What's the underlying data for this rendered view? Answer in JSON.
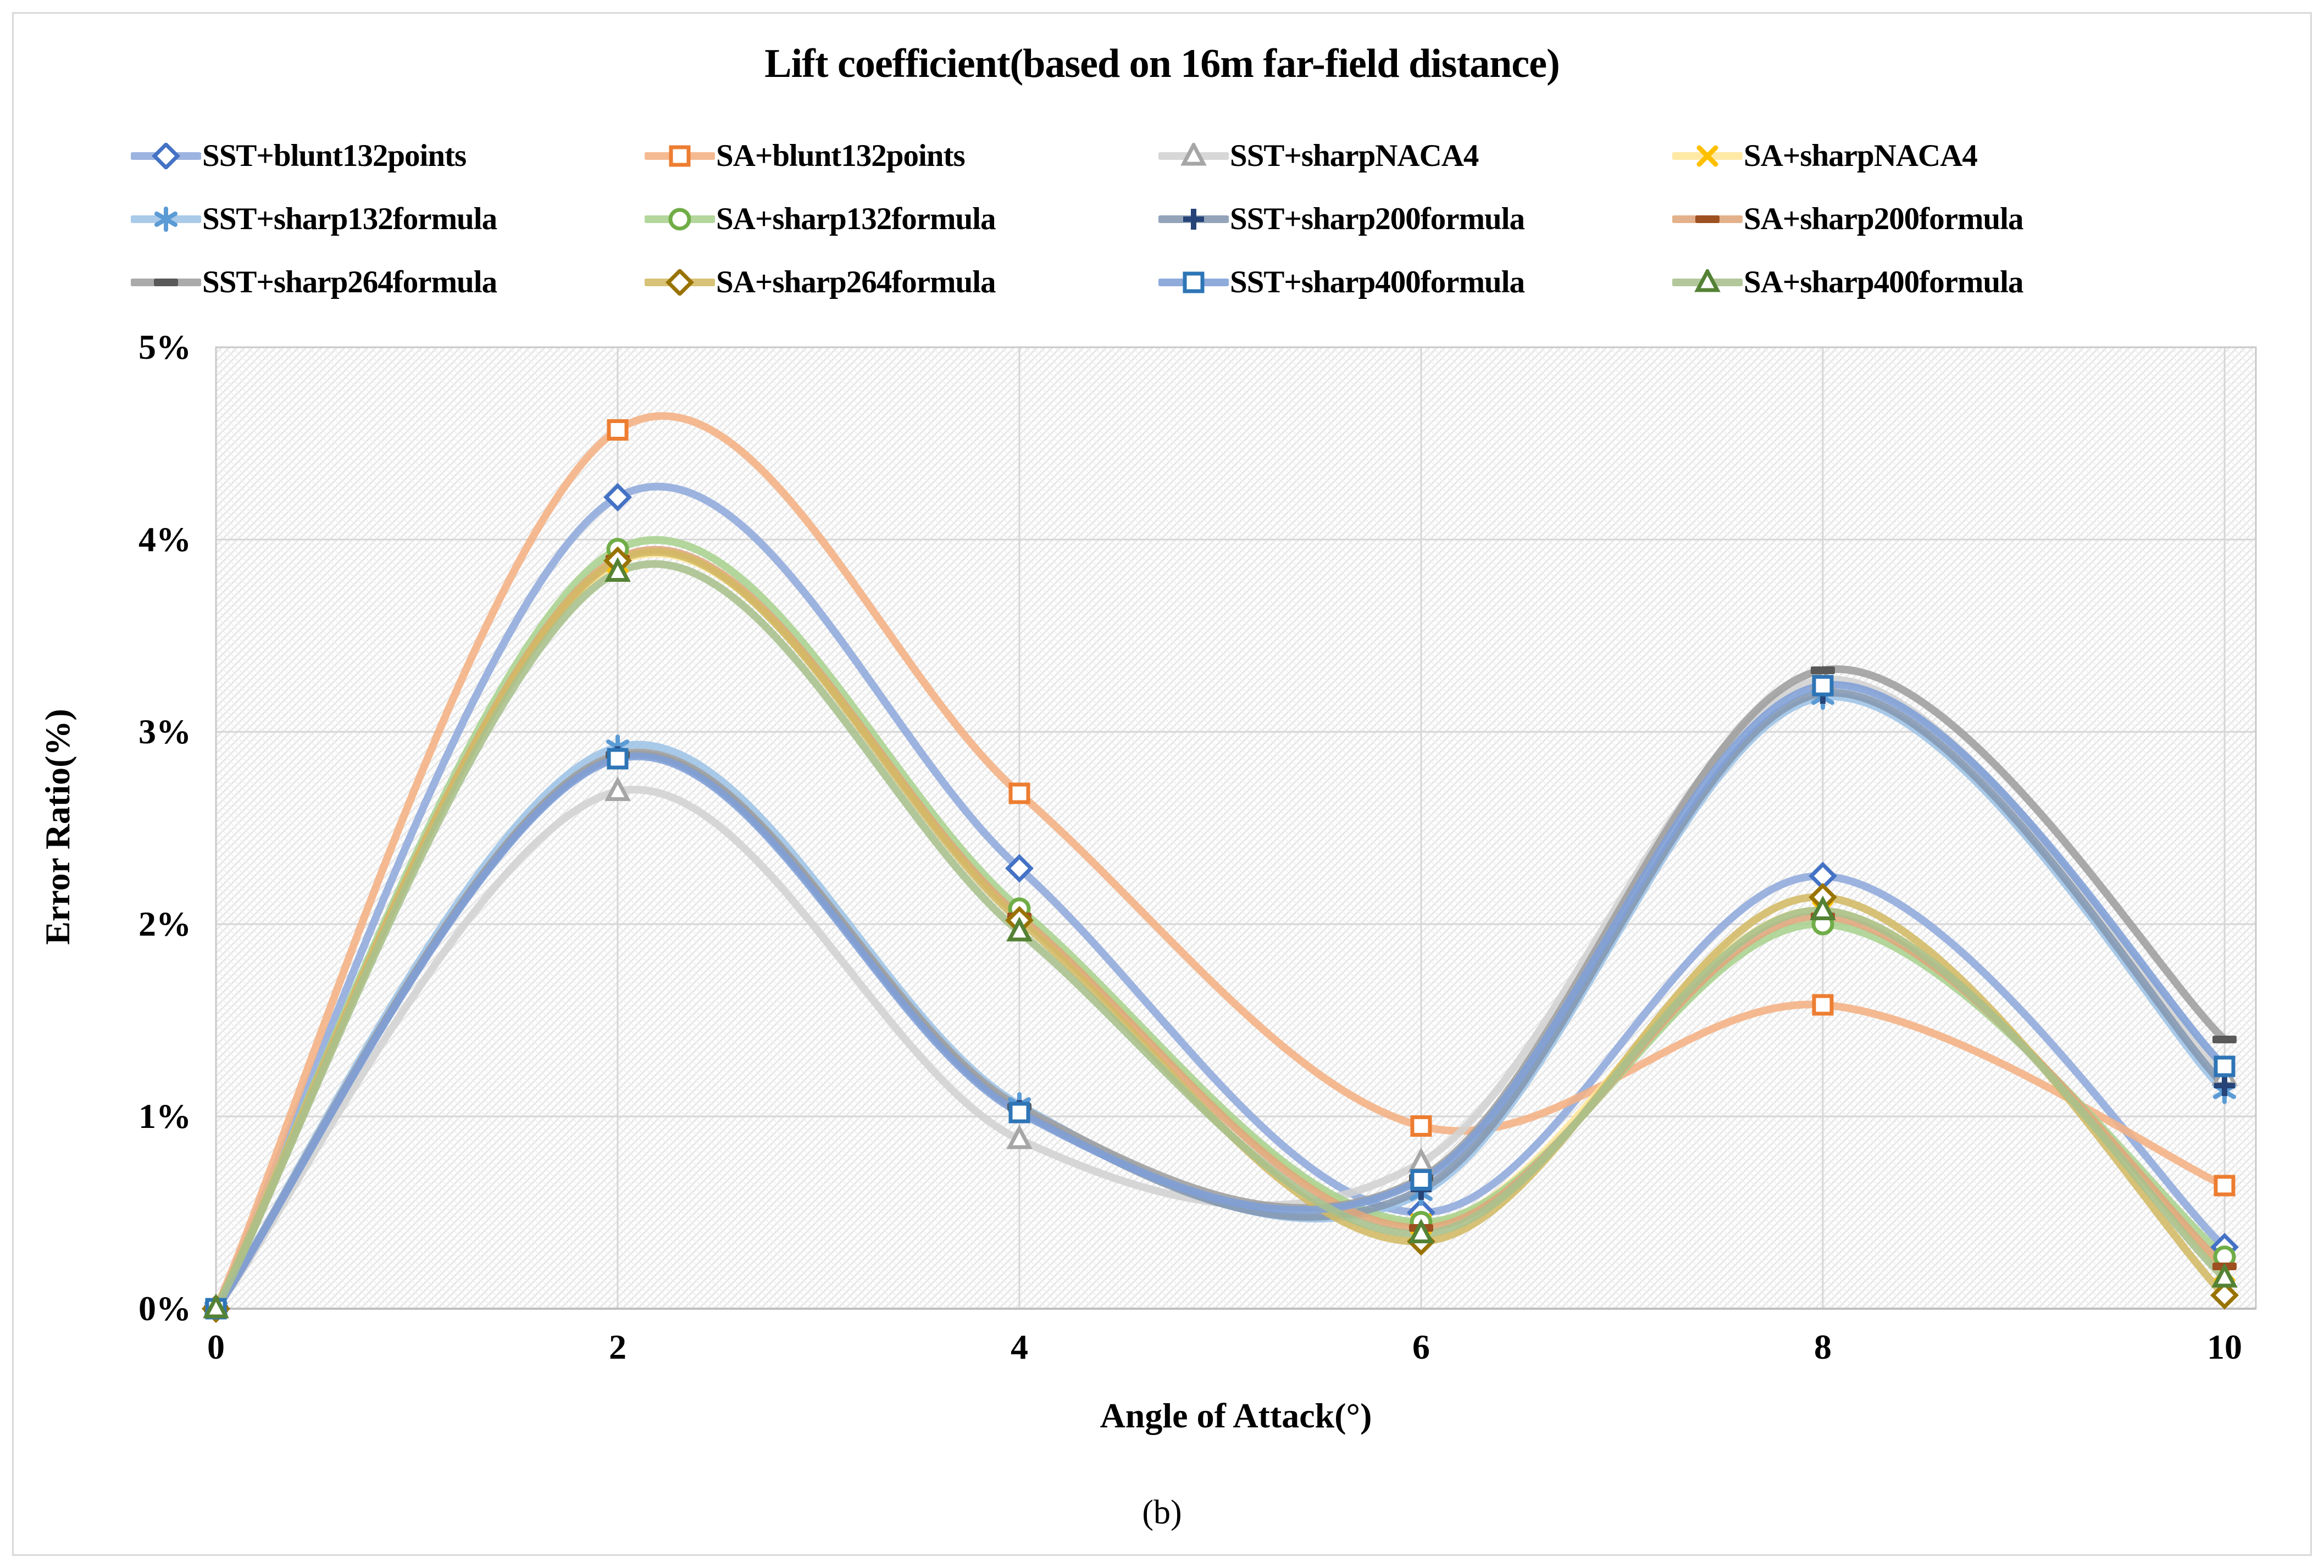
{
  "figure": {
    "caption": "(b)"
  },
  "chart_data": {
    "type": "line",
    "title": "Lift coefficient(based on 16m far-field distance)",
    "x_label": "Angle of Attack(°)",
    "y_label": "Error Ratio(%)",
    "x": [
      0,
      2,
      4,
      6,
      8,
      10
    ],
    "x_ticks": [
      "0",
      "2",
      "4",
      "6",
      "8",
      "10"
    ],
    "y_ticks": [
      "0%",
      "1%",
      "2%",
      "3%",
      "4%",
      "5%"
    ],
    "xlim": [
      0,
      10.16
    ],
    "ylim_percent": [
      0,
      5
    ],
    "grid": true,
    "legend_position": "top",
    "line_smoothing": true,
    "plot_background": "diagonal-hatch",
    "series": [
      {
        "name": "SST+blunt132points",
        "marker": "diamond",
        "line_color": "#8FAADC",
        "marker_color": "#4472C4",
        "values": [
          0,
          4.22,
          2.29,
          0.5,
          2.25,
          0.32
        ]
      },
      {
        "name": "SA+blunt132points",
        "marker": "square",
        "line_color": "#F4B183",
        "marker_color": "#ED7D31",
        "values": [
          0,
          4.57,
          2.68,
          0.95,
          1.58,
          0.64
        ]
      },
      {
        "name": "SST+sharpNACA4",
        "marker": "triangle",
        "line_color": "#D2D2D2",
        "marker_color": "#A6A6A6",
        "values": [
          0,
          2.69,
          0.88,
          0.76,
          3.27,
          1.21
        ]
      },
      {
        "name": "SA+sharpNACA4",
        "marker": "x",
        "line_color": "#FFE699",
        "marker_color": "#FFC000",
        "values": [
          0,
          3.88,
          2.05,
          0.44,
          2.07,
          0.19
        ]
      },
      {
        "name": "SST+sharp132formula",
        "marker": "asterisk",
        "line_color": "#9DC3E6",
        "marker_color": "#5B9BD5",
        "values": [
          0,
          2.92,
          1.06,
          0.6,
          3.18,
          1.13
        ]
      },
      {
        "name": "SA+sharp132formula",
        "marker": "circle",
        "line_color": "#A9D18E",
        "marker_color": "#70AD47",
        "values": [
          0,
          3.95,
          2.08,
          0.45,
          2.0,
          0.27
        ]
      },
      {
        "name": "SST+sharp200formula",
        "marker": "plus",
        "line_color": "#8497B0",
        "marker_color": "#264478",
        "values": [
          0,
          2.87,
          1.03,
          0.62,
          3.2,
          1.16
        ]
      },
      {
        "name": "SA+sharp200formula",
        "marker": "dash",
        "line_color": "#DFA67B",
        "marker_color": "#9E5021",
        "values": [
          0,
          3.9,
          2.04,
          0.42,
          2.04,
          0.22
        ]
      },
      {
        "name": "SST+sharp264formula",
        "marker": "dash",
        "line_color": "#9E9E9E",
        "marker_color": "#595959",
        "values": [
          0,
          2.88,
          1.05,
          0.68,
          3.32,
          1.4
        ]
      },
      {
        "name": "SA+sharp264formula",
        "marker": "diamond",
        "line_color": "#D2B964",
        "marker_color": "#997300",
        "values": [
          0,
          3.89,
          2.02,
          0.35,
          2.14,
          0.07
        ]
      },
      {
        "name": "SST+sharp400formula",
        "marker": "square",
        "line_color": "#7F9FD7",
        "marker_color": "#2E75B6",
        "values": [
          0,
          2.86,
          1.02,
          0.67,
          3.24,
          1.26
        ]
      },
      {
        "name": "SA+sharp400formula",
        "marker": "triangle",
        "line_color": "#A9C08C",
        "marker_color": "#548235",
        "values": [
          0,
          3.83,
          1.96,
          0.39,
          2.07,
          0.16
        ]
      }
    ]
  }
}
